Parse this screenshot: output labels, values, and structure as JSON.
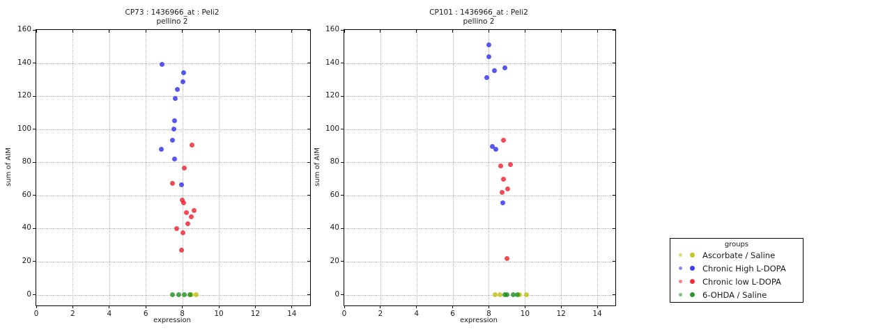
{
  "figure": {
    "background": "#ffffff"
  },
  "legend": {
    "title": "groups",
    "entries": [
      {
        "label": "Ascorbate / Saline",
        "color": "#bebe0a"
      },
      {
        "label": "Chronic High L-DOPA",
        "color": "#2828eb"
      },
      {
        "label": "Chronic low L-DOPA",
        "color": "#eb1928"
      },
      {
        "label": "6-OHDA / Saline",
        "color": "#198c19"
      }
    ]
  },
  "chart_data": [
    {
      "type": "scatter",
      "title": "CP73 : 1436966_at : Peli2",
      "subtitle": "pellino 2",
      "xlabel": "expression",
      "ylabel": "sum of AIM",
      "xlim": [
        0,
        15
      ],
      "ylim": [
        -6.5,
        160
      ],
      "xticks": [
        0,
        2,
        4,
        6,
        8,
        10,
        12,
        14
      ],
      "yticks": [
        0,
        20,
        40,
        60,
        80,
        100,
        120,
        140,
        160
      ],
      "grid": true,
      "series": [
        {
          "name": "Ascorbate / Saline",
          "color": "#bebe0a",
          "points": [
            [
              8.5,
              0
            ],
            [
              8.75,
              0
            ]
          ]
        },
        {
          "name": "Chronic High L-DOPA",
          "color": "#2828eb",
          "points": [
            [
              6.9,
              139
            ],
            [
              8.08,
              134
            ],
            [
              8.04,
              128.5
            ],
            [
              7.73,
              124
            ],
            [
              7.62,
              118.5
            ],
            [
              7.58,
              105
            ],
            [
              7.54,
              100
            ],
            [
              7.47,
              93.5
            ],
            [
              6.86,
              88
            ],
            [
              7.58,
              82
            ],
            [
              7.96,
              66.5
            ]
          ]
        },
        {
          "name": "Chronic low L-DOPA",
          "color": "#eb1928",
          "points": [
            [
              8.53,
              90.5
            ],
            [
              8.11,
              76.5
            ],
            [
              7.48,
              67.5
            ],
            [
              7.99,
              57
            ],
            [
              8.06,
              55.5
            ],
            [
              8.66,
              51
            ],
            [
              8.22,
              49.5
            ],
            [
              8.51,
              47
            ],
            [
              8.32,
              43
            ],
            [
              7.68,
              40
            ],
            [
              8.02,
              37.5
            ],
            [
              7.97,
              27
            ]
          ]
        },
        {
          "name": "6-OHDA / Saline",
          "color": "#198c19",
          "points": [
            [
              7.45,
              0
            ],
            [
              7.8,
              0
            ],
            [
              8.1,
              0
            ],
            [
              8.4,
              0
            ]
          ]
        }
      ]
    },
    {
      "type": "scatter",
      "title": "CP101 : 1436966_at : Peli2",
      "subtitle": "pellino 2",
      "xlabel": "expression",
      "ylabel": "sum of AIM",
      "xlim": [
        0,
        15
      ],
      "ylim": [
        -6.5,
        160
      ],
      "xticks": [
        0,
        2,
        4,
        6,
        8,
        10,
        12,
        14
      ],
      "yticks": [
        0,
        20,
        40,
        60,
        80,
        100,
        120,
        140,
        160
      ],
      "grid": true,
      "series": [
        {
          "name": "Ascorbate / Saline",
          "color": "#bebe0a",
          "points": [
            [
              8.35,
              0
            ],
            [
              8.62,
              0
            ],
            [
              9.7,
              0
            ],
            [
              10.1,
              0
            ]
          ]
        },
        {
          "name": "Chronic High L-DOPA",
          "color": "#2828eb",
          "points": [
            [
              8.0,
              151
            ],
            [
              8.0,
              144
            ],
            [
              8.88,
              137
            ],
            [
              8.31,
              135.5
            ],
            [
              7.9,
              131
            ],
            [
              8.21,
              89.5
            ],
            [
              8.38,
              88
            ],
            [
              8.76,
              55.5
            ]
          ]
        },
        {
          "name": "Chronic low L-DOPA",
          "color": "#eb1928",
          "points": [
            [
              8.8,
              93.5
            ],
            [
              9.2,
              78.5
            ],
            [
              8.64,
              78
            ],
            [
              8.82,
              70
            ],
            [
              9.05,
              64
            ],
            [
              8.75,
              62
            ],
            [
              9.02,
              22
            ]
          ]
        },
        {
          "name": "6-OHDA / Saline",
          "color": "#198c19",
          "points": [
            [
              8.9,
              0
            ],
            [
              9.02,
              0
            ],
            [
              9.35,
              0
            ],
            [
              9.6,
              0
            ]
          ]
        }
      ]
    }
  ]
}
